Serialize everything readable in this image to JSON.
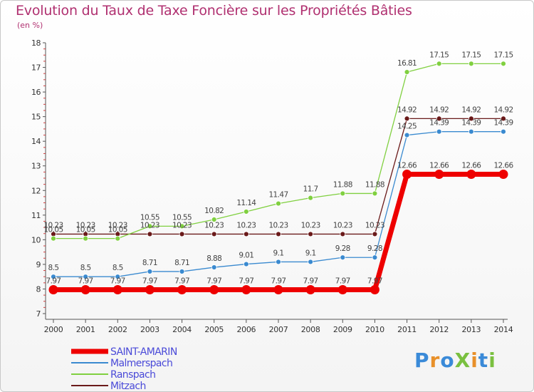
{
  "title": "Evolution du Taux de Taxe Foncière sur les Propriétés Bâties",
  "subtitle": "(en %)",
  "logo": {
    "text": "ProXiti",
    "letters": [
      {
        "ch": "P",
        "color": "#3a8ad8"
      },
      {
        "ch": "r",
        "color": "#e8902a"
      },
      {
        "ch": "o",
        "color": "#3a8ad8"
      },
      {
        "ch": "X",
        "color": "#7ac040"
      },
      {
        "ch": "i",
        "color": "#e8902a"
      },
      {
        "ch": "t",
        "color": "#3a8ad8"
      },
      {
        "ch": "i",
        "color": "#7ac040"
      }
    ]
  },
  "chart_data": {
    "type": "line",
    "x": [
      2000,
      2001,
      2002,
      2003,
      2004,
      2005,
      2006,
      2007,
      2008,
      2009,
      2010,
      2011,
      2012,
      2013,
      2014
    ],
    "ylim": [
      7,
      18
    ],
    "yticks": [
      7,
      8,
      9,
      10,
      11,
      12,
      13,
      14,
      15,
      16,
      17,
      18
    ],
    "xlabel": "",
    "ylabel": "",
    "grid": false,
    "legend_position": "bottom-left",
    "series": [
      {
        "name": "SAINT-AMARIN",
        "color": "#ee0000",
        "values": [
          7.97,
          7.97,
          7.97,
          7.97,
          7.97,
          7.97,
          7.97,
          7.97,
          7.97,
          7.97,
          7.97,
          12.66,
          12.66,
          12.66,
          12.66
        ],
        "labels": [
          "7.97",
          "7.97",
          "7.97",
          "7.97",
          "7.97",
          "7.97",
          "7.97",
          "7.97",
          "7.97",
          "7.97",
          "7.97",
          "12.66",
          "12.66",
          "12.66",
          "12.66"
        ]
      },
      {
        "name": "Malmerspach",
        "color": "#3a8ad0",
        "values": [
          8.5,
          8.5,
          8.5,
          8.71,
          8.71,
          8.88,
          9.01,
          9.1,
          9.1,
          9.28,
          9.28,
          14.25,
          14.39,
          14.39,
          14.39
        ],
        "labels": [
          "8.5",
          "8.5",
          "8.5",
          "8.71",
          "8.71",
          "8.88",
          "9.01",
          "9.1",
          "9.1",
          "9.28",
          "9.28",
          "14.25",
          "14.39",
          "14.39",
          "14.39"
        ]
      },
      {
        "name": "Ranspach",
        "color": "#80d040",
        "values": [
          10.05,
          10.05,
          10.05,
          10.55,
          10.55,
          10.82,
          11.14,
          11.47,
          11.7,
          11.88,
          11.88,
          16.81,
          17.15,
          17.15,
          17.15
        ],
        "labels": [
          "10.05",
          "10.05",
          "10.05",
          "10.55",
          "10.55",
          "10.82",
          "11.14",
          "11.47",
          "11.7",
          "11.88",
          "11.88",
          "16.81",
          "17.15",
          "17.15",
          "17.15"
        ]
      },
      {
        "name": "Mitzach",
        "color": "#6a1a1a",
        "values": [
          10.23,
          10.23,
          10.23,
          10.23,
          10.23,
          10.23,
          10.23,
          10.23,
          10.23,
          10.23,
          10.23,
          14.92,
          14.92,
          14.92,
          14.92
        ],
        "labels": [
          "10.23",
          "10.23",
          "10.23",
          "10.23",
          "10.23",
          "10.23",
          "10.23",
          "10.23",
          "10.23",
          "10.23",
          "10.23",
          "14.92",
          "14.92",
          "14.92",
          "14.92"
        ]
      }
    ]
  }
}
